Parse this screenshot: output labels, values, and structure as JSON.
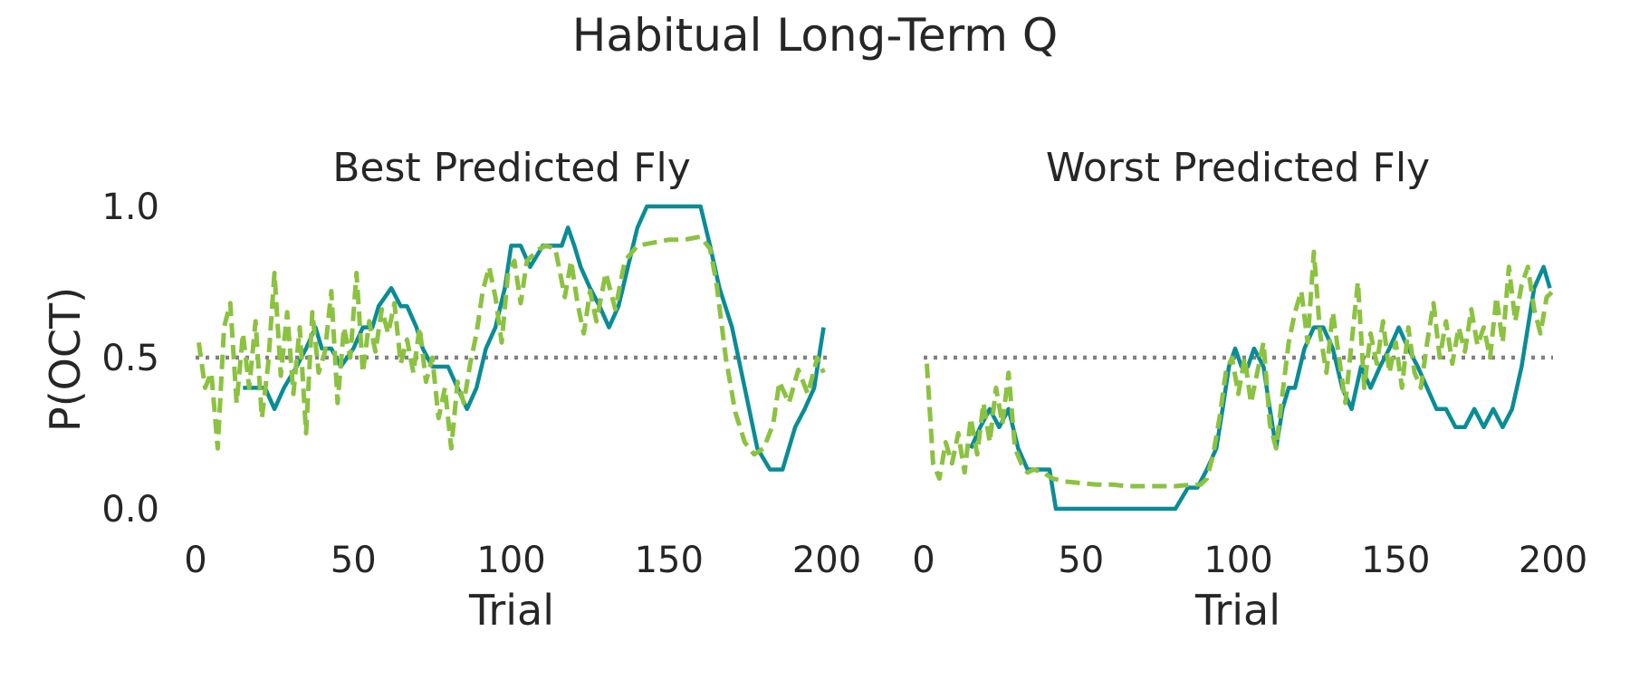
{
  "figure": {
    "title": "Habitual Long-Term Q",
    "colors": {
      "observed": "#0a8c96",
      "model": "#8bc240",
      "reference": "#808080"
    }
  },
  "chart_data": [
    {
      "type": "line",
      "title": "Best Predicted Fly",
      "xlabel": "Trial",
      "ylabel": "P(OCT)",
      "xlim": [
        0,
        200
      ],
      "ylim": [
        -0.05,
        1.0
      ],
      "xticks": [
        "0",
        "50",
        "100",
        "150",
        "200"
      ],
      "yticks": [
        "0.0",
        "0.5",
        "1.0"
      ],
      "grid": false,
      "reference_line": {
        "y": 0.5,
        "style": "dotted",
        "color": "#808080"
      },
      "series": [
        {
          "style": "solid",
          "color": "#0a8c96",
          "x": [
            15,
            18,
            22,
            25,
            28,
            32,
            35,
            38,
            40,
            43,
            46,
            50,
            53,
            56,
            58,
            62,
            65,
            67,
            70,
            72,
            75,
            78,
            80,
            83,
            86,
            89,
            92,
            95,
            98,
            100,
            103,
            106,
            110,
            113,
            116,
            118,
            120,
            122,
            125,
            128,
            131,
            134,
            137,
            140,
            143,
            146,
            150,
            155,
            160,
            163,
            166,
            170,
            174,
            178,
            182,
            186,
            190,
            193,
            196,
            199
          ],
          "y": [
            0.4,
            0.4,
            0.4,
            0.33,
            0.4,
            0.47,
            0.53,
            0.6,
            0.53,
            0.53,
            0.47,
            0.53,
            0.6,
            0.6,
            0.67,
            0.73,
            0.67,
            0.67,
            0.6,
            0.53,
            0.47,
            0.47,
            0.47,
            0.4,
            0.33,
            0.4,
            0.53,
            0.6,
            0.73,
            0.87,
            0.87,
            0.8,
            0.87,
            0.87,
            0.87,
            0.93,
            0.87,
            0.8,
            0.73,
            0.67,
            0.6,
            0.67,
            0.8,
            0.93,
            1.0,
            1.0,
            1.0,
            1.0,
            1.0,
            0.87,
            0.73,
            0.6,
            0.4,
            0.2,
            0.13,
            0.13,
            0.27,
            0.33,
            0.4,
            0.6
          ]
        },
        {
          "style": "dashed",
          "color": "#8bc240",
          "x": [
            1,
            3,
            5,
            7,
            9,
            11,
            13,
            15,
            17,
            19,
            21,
            23,
            25,
            27,
            29,
            31,
            33,
            35,
            37,
            39,
            41,
            43,
            45,
            47,
            49,
            51,
            53,
            55,
            57,
            59,
            61,
            63,
            65,
            67,
            69,
            71,
            73,
            75,
            77,
            79,
            81,
            83,
            85,
            87,
            89,
            91,
            93,
            95,
            97,
            99,
            101,
            103,
            105,
            107,
            109,
            111,
            114,
            117,
            119,
            121,
            123,
            125,
            127,
            130,
            133,
            136,
            140,
            145,
            150,
            155,
            160,
            163,
            165,
            168,
            171,
            174,
            177,
            180,
            183,
            185,
            188,
            191,
            194,
            197,
            199
          ],
          "y": [
            0.55,
            0.4,
            0.45,
            0.2,
            0.6,
            0.68,
            0.35,
            0.58,
            0.4,
            0.62,
            0.3,
            0.48,
            0.78,
            0.44,
            0.65,
            0.38,
            0.6,
            0.25,
            0.65,
            0.45,
            0.52,
            0.72,
            0.35,
            0.6,
            0.5,
            0.78,
            0.45,
            0.62,
            0.52,
            0.66,
            0.58,
            0.68,
            0.48,
            0.56,
            0.45,
            0.6,
            0.42,
            0.5,
            0.3,
            0.4,
            0.2,
            0.42,
            0.35,
            0.48,
            0.58,
            0.72,
            0.8,
            0.7,
            0.55,
            0.78,
            0.82,
            0.68,
            0.82,
            0.84,
            0.86,
            0.87,
            0.86,
            0.7,
            0.82,
            0.68,
            0.58,
            0.72,
            0.62,
            0.78,
            0.66,
            0.82,
            0.87,
            0.88,
            0.89,
            0.89,
            0.9,
            0.86,
            0.75,
            0.5,
            0.32,
            0.22,
            0.18,
            0.2,
            0.28,
            0.42,
            0.35,
            0.46,
            0.38,
            0.5,
            0.45
          ]
        }
      ]
    },
    {
      "type": "line",
      "title": "Worst Predicted Fly",
      "xlabel": "Trial",
      "ylabel": "",
      "xlim": [
        0,
        200
      ],
      "ylim": [
        -0.05,
        1.0
      ],
      "xticks": [
        "0",
        "50",
        "100",
        "150",
        "200"
      ],
      "yticks": [],
      "grid": false,
      "reference_line": {
        "y": 0.5,
        "style": "dotted",
        "color": "#808080"
      },
      "series": [
        {
          "style": "solid",
          "color": "#0a8c96",
          "x": [
            15,
            18,
            21,
            24,
            27,
            30,
            33,
            36,
            40,
            42,
            50,
            60,
            70,
            80,
            84,
            87,
            90,
            93,
            95,
            97,
            99,
            101,
            103,
            105,
            108,
            110,
            112,
            114,
            116,
            118,
            121,
            124,
            127,
            130,
            133,
            136,
            139,
            142,
            145,
            148,
            151,
            154,
            157,
            160,
            163,
            166,
            169,
            172,
            175,
            178,
            181,
            184,
            187,
            190,
            192,
            194,
            197,
            199
          ],
          "y": [
            0.2,
            0.27,
            0.33,
            0.27,
            0.33,
            0.2,
            0.13,
            0.13,
            0.13,
            0.0,
            0.0,
            0.0,
            0.0,
            0.0,
            0.07,
            0.07,
            0.13,
            0.2,
            0.33,
            0.47,
            0.53,
            0.47,
            0.47,
            0.53,
            0.47,
            0.33,
            0.2,
            0.33,
            0.4,
            0.4,
            0.53,
            0.6,
            0.6,
            0.53,
            0.4,
            0.33,
            0.47,
            0.4,
            0.47,
            0.53,
            0.6,
            0.53,
            0.47,
            0.4,
            0.33,
            0.33,
            0.27,
            0.27,
            0.33,
            0.27,
            0.33,
            0.27,
            0.33,
            0.47,
            0.6,
            0.73,
            0.8,
            0.73
          ]
        },
        {
          "style": "dashed",
          "color": "#8bc240",
          "x": [
            1,
            3,
            5,
            7,
            9,
            11,
            13,
            15,
            17,
            19,
            21,
            23,
            25,
            27,
            29,
            31,
            33,
            35,
            38,
            41,
            45,
            50,
            55,
            60,
            65,
            70,
            75,
            80,
            85,
            88,
            90,
            92,
            94,
            96,
            98,
            100,
            102,
            104,
            106,
            108,
            110,
            112,
            114,
            116,
            118,
            120,
            122,
            124,
            126,
            128,
            130,
            132,
            134,
            136,
            138,
            140,
            142,
            144,
            146,
            148,
            150,
            152,
            154,
            156,
            158,
            160,
            162,
            164,
            166,
            168,
            170,
            172,
            174,
            176,
            178,
            180,
            182,
            184,
            186,
            188,
            190,
            192,
            194,
            196,
            198,
            200
          ],
          "y": [
            0.48,
            0.15,
            0.1,
            0.22,
            0.15,
            0.25,
            0.12,
            0.3,
            0.18,
            0.35,
            0.22,
            0.4,
            0.28,
            0.45,
            0.2,
            0.15,
            0.12,
            0.13,
            0.12,
            0.1,
            0.09,
            0.085,
            0.08,
            0.08,
            0.075,
            0.075,
            0.075,
            0.075,
            0.08,
            0.08,
            0.1,
            0.18,
            0.3,
            0.45,
            0.5,
            0.38,
            0.5,
            0.35,
            0.45,
            0.55,
            0.28,
            0.2,
            0.38,
            0.55,
            0.65,
            0.72,
            0.55,
            0.85,
            0.58,
            0.45,
            0.65,
            0.5,
            0.35,
            0.55,
            0.75,
            0.4,
            0.58,
            0.48,
            0.62,
            0.45,
            0.55,
            0.4,
            0.6,
            0.45,
            0.4,
            0.55,
            0.68,
            0.5,
            0.62,
            0.48,
            0.6,
            0.52,
            0.66,
            0.54,
            0.6,
            0.5,
            0.7,
            0.55,
            0.8,
            0.62,
            0.74,
            0.8,
            0.66,
            0.58,
            0.7,
            0.72
          ]
        }
      ]
    }
  ]
}
